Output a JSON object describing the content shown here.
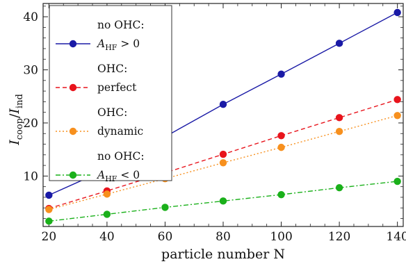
{
  "chart_data": {
    "type": "line",
    "title": "",
    "xlabel": "particle number N",
    "ylabel": {
      "main": "I",
      "sub1": "coop",
      "slash": "/",
      "main2": "I",
      "sub2": "ind"
    },
    "xlim": [
      18,
      142
    ],
    "ylim": [
      0.5,
      42.5
    ],
    "xticks": [
      20,
      40,
      60,
      80,
      100,
      120,
      140
    ],
    "yticks": [
      10,
      20,
      30,
      40
    ],
    "grid": false,
    "legend_position": "top-left",
    "series": [
      {
        "legend_line1": "no OHC:",
        "legend_line2": {
          "italic": "A",
          "sub": "HF",
          "rest": " > 0"
        },
        "color": "#1a1aa6",
        "dash": "",
        "x": [
          20,
          40,
          60,
          80,
          100,
          120,
          140
        ],
        "values": [
          6.4,
          11.3,
          17.4,
          23.5,
          29.2,
          35.0,
          40.8
        ]
      },
      {
        "legend_line1": "OHC:",
        "legend_line2": {
          "text": "perfect"
        },
        "color": "#e8141c",
        "dash": "6,4",
        "x": [
          20,
          40,
          60,
          80,
          100,
          120,
          140
        ],
        "values": [
          3.9,
          7.2,
          10.6,
          14.1,
          17.6,
          21.0,
          24.4
        ]
      },
      {
        "legend_line1": "OHC:",
        "legend_line2": {
          "text": "dynamic"
        },
        "color": "#f7901e",
        "dash": "2,3",
        "x": [
          20,
          40,
          60,
          80,
          100,
          120,
          140
        ],
        "values": [
          3.7,
          6.6,
          9.5,
          12.5,
          15.4,
          18.4,
          21.4
        ]
      },
      {
        "legend_line1": "no OHC:",
        "legend_line2": {
          "italic": "A",
          "sub": "HF",
          "rest": " < 0"
        },
        "color": "#1ab01a",
        "dash": "7,3,2,3",
        "x": [
          20,
          40,
          60,
          80,
          100,
          120,
          140
        ],
        "values": [
          1.5,
          2.8,
          4.1,
          5.3,
          6.5,
          7.8,
          9.0
        ]
      }
    ]
  }
}
